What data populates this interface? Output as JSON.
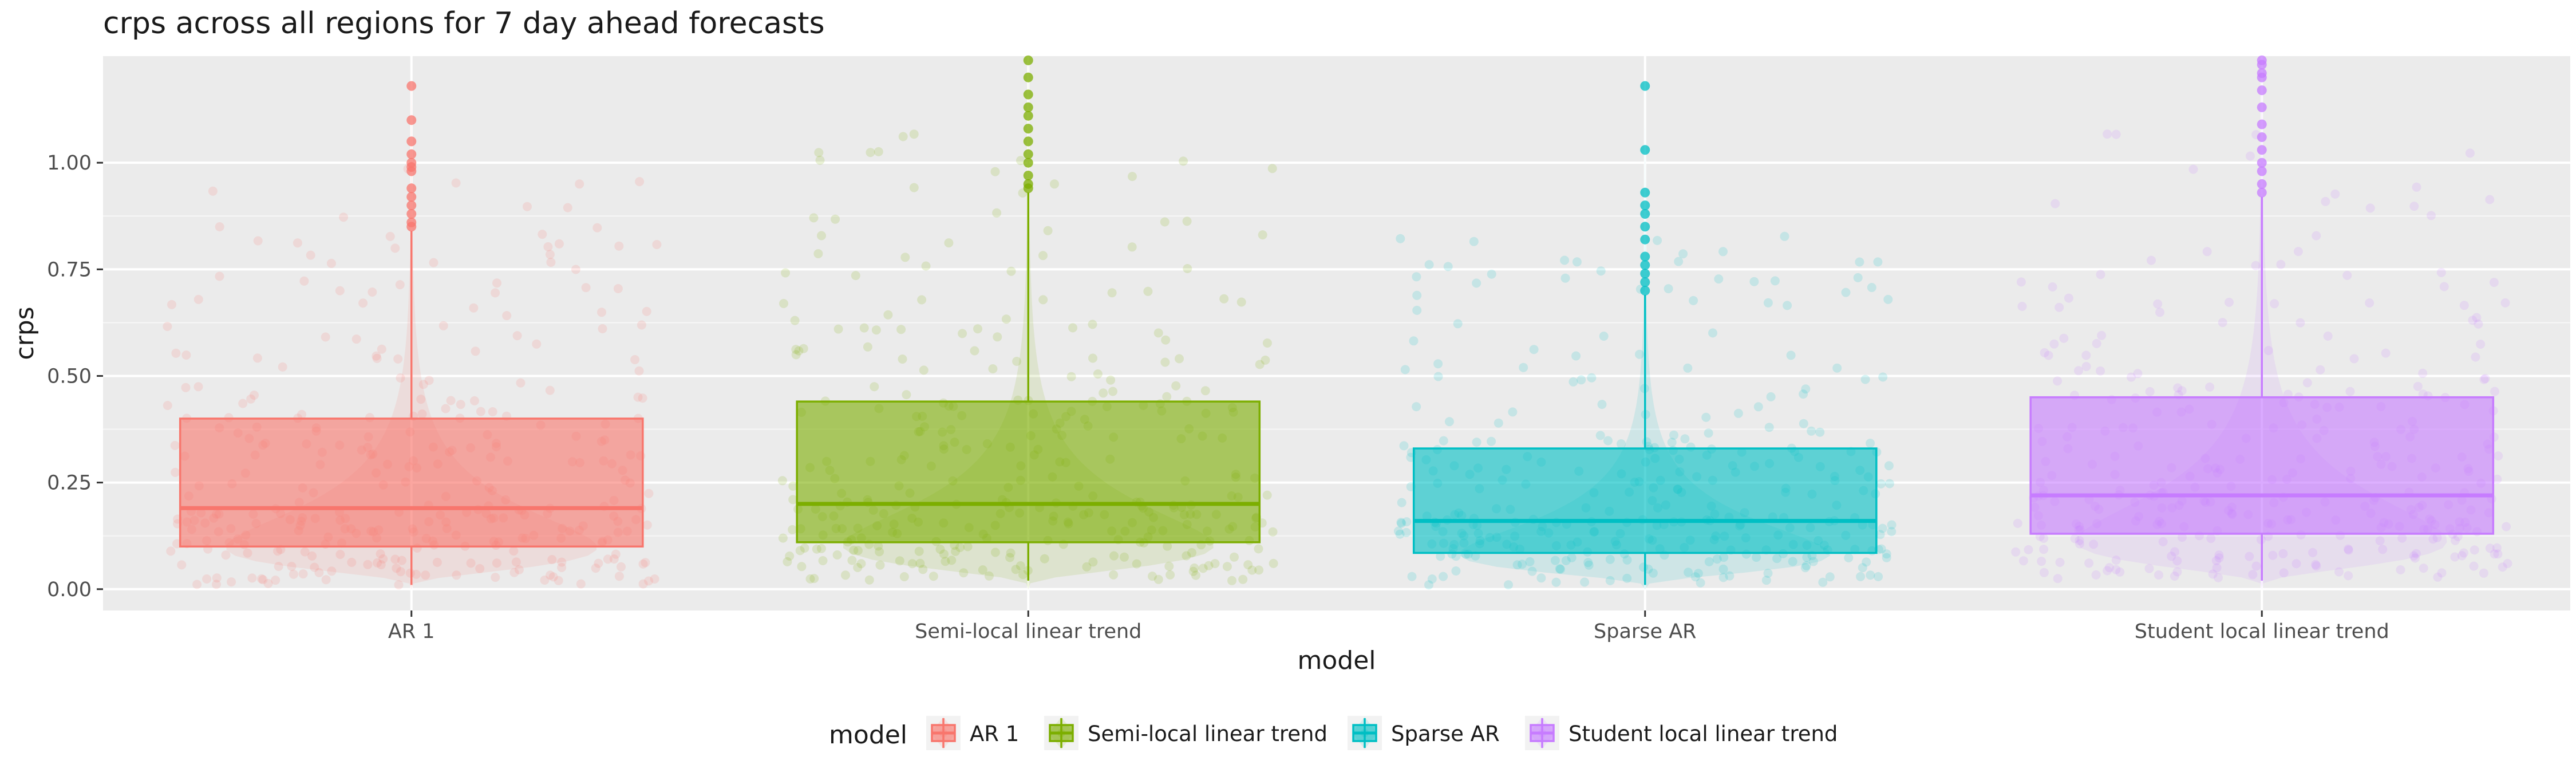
{
  "chart_data": {
    "type": "box",
    "title": "crps across all regions for 7 day ahead forecasts",
    "xlabel": "model",
    "ylabel": "crps",
    "ylim": [
      -0.05,
      1.25
    ],
    "yticks": [
      0.0,
      0.25,
      0.5,
      0.75,
      1.0
    ],
    "ytick_labels": [
      "0.00",
      "0.25",
      "0.50",
      "0.75",
      "1.00"
    ],
    "grid": true,
    "legend": {
      "title": "model",
      "position": "bottom"
    },
    "categories": [
      "AR 1",
      "Semi-local linear trend",
      "Sparse AR",
      "Student local linear trend"
    ],
    "series": [
      {
        "name": "AR 1",
        "color": "#F8766D",
        "box": {
          "whisker_low": 0.01,
          "q1": 0.1,
          "median": 0.19,
          "q3": 0.4,
          "whisker_high": 0.84
        },
        "outliers": [
          0.85,
          0.86,
          0.88,
          0.9,
          0.92,
          0.94,
          0.98,
          0.99,
          1.0,
          1.02,
          1.05,
          1.1,
          1.18
        ]
      },
      {
        "name": "Semi-local linear trend",
        "color": "#7CAE00",
        "box": {
          "whisker_low": 0.02,
          "q1": 0.11,
          "median": 0.2,
          "q3": 0.44,
          "whisker_high": 0.93
        },
        "outliers": [
          0.94,
          0.95,
          0.97,
          1.0,
          1.02,
          1.05,
          1.08,
          1.11,
          1.13,
          1.16,
          1.2,
          1.24
        ]
      },
      {
        "name": "Sparse AR",
        "color": "#00BFC4",
        "box": {
          "whisker_low": 0.01,
          "q1": 0.085,
          "median": 0.16,
          "q3": 0.33,
          "whisker_high": 0.69
        },
        "outliers": [
          0.7,
          0.72,
          0.74,
          0.76,
          0.78,
          0.82,
          0.85,
          0.88,
          0.9,
          0.93,
          1.03,
          1.18
        ]
      },
      {
        "name": "Student local linear trend",
        "color": "#C77CFF",
        "box": {
          "whisker_low": 0.02,
          "q1": 0.13,
          "median": 0.22,
          "q3": 0.45,
          "whisker_high": 0.92
        },
        "outliers": [
          0.93,
          0.95,
          0.98,
          1.0,
          1.03,
          1.06,
          1.09,
          1.13,
          1.17,
          1.2,
          1.21,
          1.23,
          1.24
        ]
      }
    ]
  }
}
